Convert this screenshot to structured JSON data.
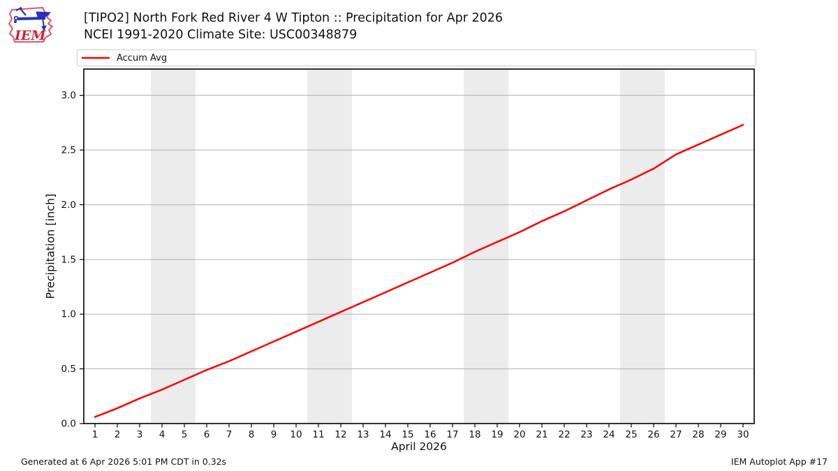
{
  "header": {
    "title_line1": "[TIPO2] North Fork Red River 4 W Tipton :: Precipitation for Apr 2026",
    "title_line2": "NCEI 1991-2020 Climate Site: USC00348879",
    "logo_text": "IEM"
  },
  "legend": {
    "items": [
      {
        "label": "Accum Avg",
        "color": "#ff0000"
      }
    ]
  },
  "footer": {
    "left": "Generated at 6 Apr 2026 5:01 PM CDT in 0.32s",
    "right": "IEM Autoplot App #17"
  },
  "chart_data": {
    "type": "line",
    "title": "[TIPO2] North Fork Red River 4 W Tipton :: Precipitation for Apr 2026",
    "subtitle": "NCEI 1991-2020 Climate Site: USC00348879",
    "xlabel": "April 2026",
    "ylabel": "Precipitation [inch]",
    "x": [
      1,
      2,
      3,
      4,
      5,
      6,
      7,
      8,
      9,
      10,
      11,
      12,
      13,
      14,
      15,
      16,
      17,
      18,
      19,
      20,
      21,
      22,
      23,
      24,
      25,
      26,
      27,
      28,
      29,
      30
    ],
    "series": [
      {
        "name": "Accum Avg",
        "color": "#ff0000",
        "values": [
          0.06,
          0.14,
          0.23,
          0.31,
          0.4,
          0.49,
          0.57,
          0.66,
          0.75,
          0.84,
          0.93,
          1.02,
          1.11,
          1.2,
          1.29,
          1.38,
          1.47,
          1.57,
          1.66,
          1.75,
          1.85,
          1.94,
          2.04,
          2.14,
          2.23,
          2.33,
          2.46,
          2.55,
          2.64,
          2.73
        ]
      }
    ],
    "xlim": [
      0.5,
      30.5
    ],
    "ylim": [
      0,
      3.24
    ],
    "yticks": [
      0.0,
      0.5,
      1.0,
      1.5,
      2.0,
      2.5,
      3.0
    ],
    "xticks": [
      1,
      2,
      3,
      4,
      5,
      6,
      7,
      8,
      9,
      10,
      11,
      12,
      13,
      14,
      15,
      16,
      17,
      18,
      19,
      20,
      21,
      22,
      23,
      24,
      25,
      26,
      27,
      28,
      29,
      30
    ],
    "grid": "horizontal",
    "gridline_color": "#b0b0b0",
    "weekend_bands": [
      [
        3.5,
        5.5
      ],
      [
        10.5,
        12.5
      ],
      [
        17.5,
        19.5
      ],
      [
        24.5,
        26.5
      ]
    ],
    "band_color": "#ececec",
    "spine_color": "#000000",
    "legend_position": "top"
  }
}
